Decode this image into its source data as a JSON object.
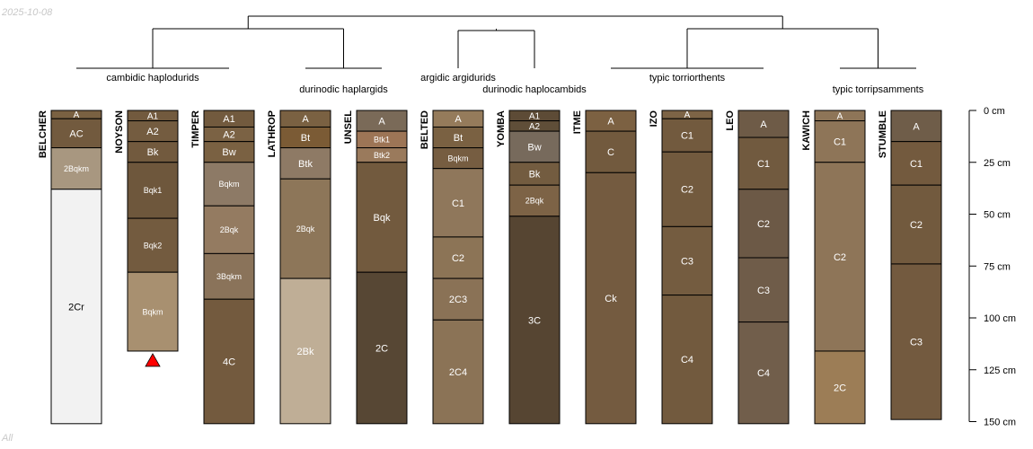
{
  "stamp": {
    "date": "2025-10-08",
    "corner": "All"
  },
  "depth_axis": {
    "max_cm": 150,
    "ticks": [
      {
        "depth": 0,
        "label": "0 cm"
      },
      {
        "depth": 25,
        "label": "25 cm"
      },
      {
        "depth": 50,
        "label": "50 cm"
      },
      {
        "depth": 75,
        "label": "75 cm"
      },
      {
        "depth": 100,
        "label": "100 cm"
      },
      {
        "depth": 125,
        "label": "125 cm"
      },
      {
        "depth": 150,
        "label": "150 cm"
      }
    ]
  },
  "taxa": [
    {
      "label": "cambidic haplodurids",
      "from": 0,
      "to": 2
    },
    {
      "label": "durinodic haplargids",
      "from": 3,
      "to": 4
    },
    {
      "label": "argidic argidurids",
      "from": 5,
      "to": 5
    },
    {
      "label": "durinodic haplocambids",
      "from": 6,
      "to": 6
    },
    {
      "label": "typic torriorthents",
      "from": 7,
      "to": 9
    },
    {
      "label": "typic torripsamments",
      "from": 10,
      "to": 11
    }
  ],
  "profiles": [
    {
      "name": "BELCHER",
      "horizons": [
        {
          "name": "A",
          "top": 0,
          "bottom": 4,
          "color": "#7a6142"
        },
        {
          "name": "AC",
          "top": 4,
          "bottom": 18,
          "color": "#725a3e"
        },
        {
          "name": "2Bqkm",
          "top": 18,
          "bottom": 38,
          "color": "#a89780"
        },
        {
          "name": "2Cr",
          "top": 38,
          "bottom": 151,
          "color": "#f2f2f2"
        }
      ]
    },
    {
      "name": "NOYSON",
      "truncated": true,
      "horizons": [
        {
          "name": "A1",
          "top": 0,
          "bottom": 5,
          "color": "#725a3e"
        },
        {
          "name": "A2",
          "top": 5,
          "bottom": 15,
          "color": "#745c40"
        },
        {
          "name": "Bk",
          "top": 15,
          "bottom": 25,
          "color": "#725a3e"
        },
        {
          "name": "Bqk1",
          "top": 25,
          "bottom": 52,
          "color": "#6e573c"
        },
        {
          "name": "Bqk2",
          "top": 52,
          "bottom": 78,
          "color": "#735b3f"
        },
        {
          "name": "Bqkm",
          "top": 78,
          "bottom": 116,
          "color": "#a89070"
        }
      ]
    },
    {
      "name": "TIMPER",
      "horizons": [
        {
          "name": "A1",
          "top": 0,
          "bottom": 8,
          "color": "#725a3e"
        },
        {
          "name": "A2",
          "top": 8,
          "bottom": 15,
          "color": "#7b6244"
        },
        {
          "name": "Bw",
          "top": 15,
          "bottom": 25,
          "color": "#7a6142"
        },
        {
          "name": "Bqkm",
          "top": 25,
          "bottom": 46,
          "color": "#8d7a66"
        },
        {
          "name": "2Bqk",
          "top": 46,
          "bottom": 69,
          "color": "#947b61"
        },
        {
          "name": "3Bqkm",
          "top": 69,
          "bottom": 91,
          "color": "#8a735a"
        },
        {
          "name": "4C",
          "top": 91,
          "bottom": 151,
          "color": "#735a3e"
        }
      ]
    },
    {
      "name": "LATHROP",
      "horizons": [
        {
          "name": "A",
          "top": 0,
          "bottom": 8,
          "color": "#7a6142"
        },
        {
          "name": "Bt",
          "top": 8,
          "bottom": 18,
          "color": "#7b5b35"
        },
        {
          "name": "Btk",
          "top": 18,
          "bottom": 33,
          "color": "#8e7a65"
        },
        {
          "name": "2Bqk",
          "top": 33,
          "bottom": 81,
          "color": "#8d7659"
        },
        {
          "name": "2Bk",
          "top": 81,
          "bottom": 151,
          "color": "#bfae96"
        }
      ]
    },
    {
      "name": "UNSEL",
      "horizons": [
        {
          "name": "A",
          "top": 0,
          "bottom": 10,
          "color": "#7a6a58"
        },
        {
          "name": "Btk1",
          "top": 10,
          "bottom": 18,
          "color": "#9d7556"
        },
        {
          "name": "Btk2",
          "top": 18,
          "bottom": 25,
          "color": "#9a7a5c"
        },
        {
          "name": "Bqk",
          "top": 25,
          "bottom": 78,
          "color": "#725a3e"
        },
        {
          "name": "2C",
          "top": 78,
          "bottom": 151,
          "color": "#574734"
        }
      ]
    },
    {
      "name": "BELTED",
      "horizons": [
        {
          "name": "A",
          "top": 0,
          "bottom": 8,
          "color": "#957b5b"
        },
        {
          "name": "Bt",
          "top": 8,
          "bottom": 18,
          "color": "#7a6142"
        },
        {
          "name": "Bqkm",
          "top": 18,
          "bottom": 28,
          "color": "#765d41"
        },
        {
          "name": "C1",
          "top": 28,
          "bottom": 61,
          "color": "#8f775b"
        },
        {
          "name": "C2",
          "top": 61,
          "bottom": 81,
          "color": "#8c7456"
        },
        {
          "name": "2C3",
          "top": 81,
          "bottom": 101,
          "color": "#8a7256"
        },
        {
          "name": "2C4",
          "top": 101,
          "bottom": 151,
          "color": "#8b7356"
        }
      ]
    },
    {
      "name": "YOMBA",
      "horizons": [
        {
          "name": "A1",
          "top": 0,
          "bottom": 5,
          "color": "#5d4b36"
        },
        {
          "name": "A2",
          "top": 5,
          "bottom": 10,
          "color": "#5f4e38"
        },
        {
          "name": "Bw",
          "top": 10,
          "bottom": 25,
          "color": "#776a5c"
        },
        {
          "name": "Bk",
          "top": 25,
          "bottom": 36,
          "color": "#735c40"
        },
        {
          "name": "2Bqk",
          "top": 36,
          "bottom": 51,
          "color": "#7d6346"
        },
        {
          "name": "3C",
          "top": 51,
          "bottom": 151,
          "color": "#564532"
        }
      ]
    },
    {
      "name": "ITME",
      "horizons": [
        {
          "name": "A",
          "top": 0,
          "bottom": 10,
          "color": "#7c6142"
        },
        {
          "name": "C",
          "top": 10,
          "bottom": 30,
          "color": "#725a3e"
        },
        {
          "name": "Ck",
          "top": 30,
          "bottom": 151,
          "color": "#745b40"
        }
      ]
    },
    {
      "name": "IZO",
      "horizons": [
        {
          "name": "A",
          "top": 0,
          "bottom": 4,
          "color": "#7d6446"
        },
        {
          "name": "C1",
          "top": 4,
          "bottom": 20,
          "color": "#725a3e"
        },
        {
          "name": "C2",
          "top": 20,
          "bottom": 56,
          "color": "#725a3e"
        },
        {
          "name": "C3",
          "top": 56,
          "bottom": 89,
          "color": "#745c40"
        },
        {
          "name": "C4",
          "top": 89,
          "bottom": 151,
          "color": "#725a3e"
        }
      ]
    },
    {
      "name": "LEO",
      "horizons": [
        {
          "name": "A",
          "top": 0,
          "bottom": 13,
          "color": "#6e5b47"
        },
        {
          "name": "C1",
          "top": 13,
          "bottom": 38,
          "color": "#715a3f"
        },
        {
          "name": "C2",
          "top": 38,
          "bottom": 71,
          "color": "#6c5946"
        },
        {
          "name": "C3",
          "top": 71,
          "bottom": 102,
          "color": "#6f5c49"
        },
        {
          "name": "C4",
          "top": 102,
          "bottom": 151,
          "color": "#715e4b"
        }
      ]
    },
    {
      "name": "KAWICH",
      "horizons": [
        {
          "name": "A",
          "top": 0,
          "bottom": 5,
          "color": "#8e7558"
        },
        {
          "name": "C1",
          "top": 5,
          "bottom": 25,
          "color": "#8e7558"
        },
        {
          "name": "C2",
          "top": 25,
          "bottom": 116,
          "color": "#8e7558"
        },
        {
          "name": "2C",
          "top": 116,
          "bottom": 151,
          "color": "#9c7d56"
        }
      ]
    },
    {
      "name": "STUMBLE",
      "horizons": [
        {
          "name": "A",
          "top": 0,
          "bottom": 15,
          "color": "#6f5d49"
        },
        {
          "name": "C1",
          "top": 15,
          "bottom": 36,
          "color": "#735a3e"
        },
        {
          "name": "C2",
          "top": 36,
          "bottom": 74,
          "color": "#725a3e"
        },
        {
          "name": "C3",
          "top": 74,
          "bottom": 149,
          "color": "#735a3f"
        }
      ]
    }
  ]
}
